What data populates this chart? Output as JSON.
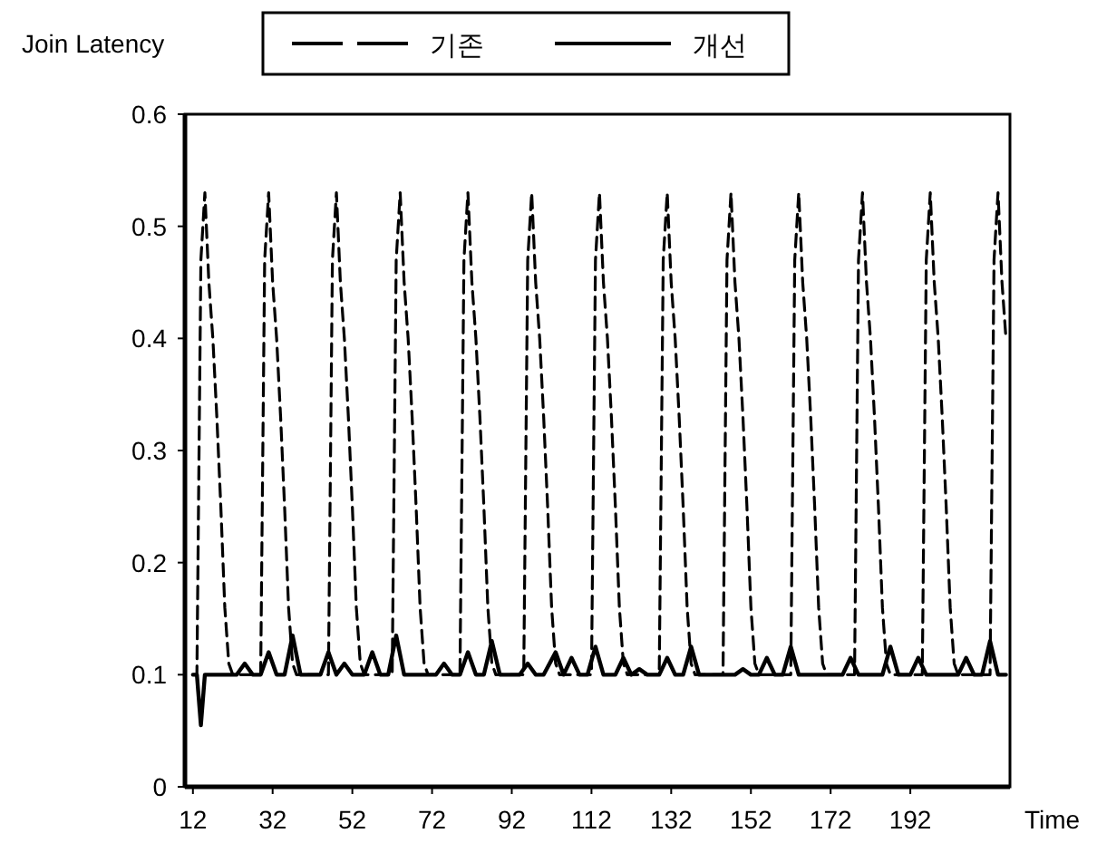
{
  "chart_data": {
    "type": "line",
    "ylabel": "Join Latency",
    "xlabel": "Time",
    "xlim": [
      10,
      217
    ],
    "ylim": [
      0,
      0.6
    ],
    "xticks": [
      12,
      32,
      52,
      72,
      92,
      112,
      132,
      152,
      172,
      192
    ],
    "yticks": [
      0,
      0.1,
      0.2,
      0.3,
      0.4,
      0.5,
      0.6
    ],
    "grid": false,
    "legend": "top",
    "marker": "none",
    "series": [
      {
        "name": "기존",
        "color": "#000000",
        "line_style": "dashed",
        "x": [
          12,
          13,
          14,
          15,
          16,
          17,
          18,
          19,
          20,
          21,
          22,
          29,
          30,
          31,
          32,
          33,
          34,
          35,
          36,
          37,
          38,
          46,
          47,
          48,
          49,
          50,
          51,
          52,
          53,
          54,
          55,
          62,
          63,
          64,
          65,
          66,
          67,
          68,
          69,
          70,
          71,
          79,
          80,
          81,
          82,
          83,
          84,
          85,
          86,
          87,
          88,
          95,
          96,
          97,
          98,
          99,
          100,
          101,
          102,
          103,
          104,
          112,
          113,
          114,
          115,
          116,
          117,
          118,
          119,
          120,
          121,
          129,
          130,
          131,
          132,
          133,
          134,
          135,
          136,
          137,
          138,
          145,
          146,
          147,
          148,
          149,
          150,
          151,
          152,
          153,
          154,
          162,
          163,
          164,
          165,
          166,
          167,
          168,
          169,
          170,
          171,
          178,
          179,
          180,
          181,
          182,
          183,
          184,
          185,
          186,
          187,
          195,
          196,
          197,
          198,
          199,
          200,
          201,
          202,
          203,
          204,
          212,
          213,
          214,
          215,
          216
        ],
        "values": [
          0.1,
          0.1,
          0.47,
          0.53,
          0.45,
          0.4,
          0.33,
          0.25,
          0.16,
          0.11,
          0.1,
          0.1,
          0.47,
          0.53,
          0.45,
          0.4,
          0.33,
          0.25,
          0.16,
          0.11,
          0.1,
          0.1,
          0.47,
          0.53,
          0.45,
          0.4,
          0.33,
          0.25,
          0.16,
          0.11,
          0.1,
          0.1,
          0.47,
          0.53,
          0.45,
          0.4,
          0.33,
          0.25,
          0.16,
          0.11,
          0.1,
          0.1,
          0.47,
          0.53,
          0.45,
          0.4,
          0.33,
          0.25,
          0.16,
          0.11,
          0.1,
          0.1,
          0.47,
          0.53,
          0.45,
          0.4,
          0.33,
          0.25,
          0.16,
          0.11,
          0.1,
          0.1,
          0.47,
          0.53,
          0.45,
          0.4,
          0.33,
          0.25,
          0.16,
          0.11,
          0.1,
          0.1,
          0.47,
          0.53,
          0.45,
          0.4,
          0.33,
          0.25,
          0.16,
          0.11,
          0.1,
          0.1,
          0.47,
          0.53,
          0.45,
          0.4,
          0.33,
          0.25,
          0.16,
          0.11,
          0.1,
          0.1,
          0.47,
          0.53,
          0.45,
          0.4,
          0.33,
          0.25,
          0.16,
          0.11,
          0.1,
          0.1,
          0.47,
          0.53,
          0.45,
          0.4,
          0.33,
          0.25,
          0.16,
          0.11,
          0.1,
          0.1,
          0.47,
          0.53,
          0.45,
          0.4,
          0.33,
          0.25,
          0.16,
          0.11,
          0.1,
          0.1,
          0.47,
          0.53,
          0.45,
          0.4
        ]
      },
      {
        "name": "개선",
        "color": "#000000",
        "line_style": "solid",
        "x": [
          12,
          13,
          14,
          15,
          23,
          25,
          27,
          29,
          31,
          33,
          35,
          37,
          39,
          44,
          46,
          48,
          50,
          52,
          55,
          57,
          59,
          61,
          63,
          65,
          73,
          75,
          77,
          79,
          81,
          83,
          85,
          87,
          89,
          94,
          96,
          98,
          100,
          103,
          105,
          107,
          109,
          111,
          113,
          115,
          118,
          120,
          122,
          124,
          126,
          129,
          131,
          133,
          135,
          137,
          139,
          148,
          150,
          152,
          154,
          156,
          158,
          160,
          162,
          164,
          175,
          177,
          179,
          185,
          187,
          189,
          192,
          194,
          196,
          204,
          206,
          208,
          210,
          212,
          214,
          216
        ],
        "values": [
          0.1,
          0.1,
          0.055,
          0.1,
          0.1,
          0.11,
          0.1,
          0.1,
          0.12,
          0.1,
          0.1,
          0.135,
          0.1,
          0.1,
          0.12,
          0.1,
          0.11,
          0.1,
          0.1,
          0.12,
          0.1,
          0.1,
          0.135,
          0.1,
          0.1,
          0.11,
          0.1,
          0.1,
          0.12,
          0.1,
          0.1,
          0.13,
          0.1,
          0.1,
          0.11,
          0.1,
          0.1,
          0.12,
          0.1,
          0.115,
          0.1,
          0.1,
          0.125,
          0.1,
          0.1,
          0.115,
          0.1,
          0.105,
          0.1,
          0.1,
          0.115,
          0.1,
          0.1,
          0.125,
          0.1,
          0.1,
          0.105,
          0.1,
          0.1,
          0.115,
          0.1,
          0.1,
          0.125,
          0.1,
          0.1,
          0.115,
          0.1,
          0.1,
          0.125,
          0.1,
          0.1,
          0.115,
          0.1,
          0.1,
          0.115,
          0.1,
          0.1,
          0.13,
          0.1,
          0.1
        ]
      }
    ]
  }
}
